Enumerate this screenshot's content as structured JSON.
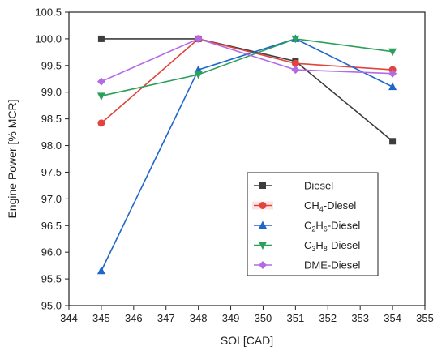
{
  "chart_data": {
    "type": "line",
    "title": "",
    "xlabel": "SOI [CAD]",
    "ylabel": "Engine Power [% MCR]",
    "xlim": [
      344,
      355
    ],
    "ylim": [
      95.0,
      100.5
    ],
    "x_ticks": [
      "344",
      "345",
      "346",
      "347",
      "348",
      "349",
      "350",
      "351",
      "352",
      "353",
      "354",
      "355"
    ],
    "y_ticks": [
      "95.0",
      "95.5",
      "96.0",
      "96.5",
      "97.0",
      "97.5",
      "98.0",
      "98.5",
      "99.0",
      "99.5",
      "100.0",
      "100.5"
    ],
    "grid": false,
    "legend_position": "bottom-right",
    "x": [
      345,
      348,
      351,
      354
    ],
    "series": [
      {
        "name": "Diesel",
        "label_parts": [
          [
            "Diesel",
            ""
          ]
        ],
        "color": "#3d3d3d",
        "marker": "square",
        "values": [
          100.0,
          100.0,
          99.58,
          98.08
        ]
      },
      {
        "name": "CH4-Diesel",
        "label_parts": [
          [
            "CH",
            ""
          ],
          [
            "4",
            "sub"
          ],
          [
            "-Diesel",
            ""
          ]
        ],
        "color": "#e0443c",
        "marker": "circle",
        "values": [
          98.42,
          100.0,
          99.54,
          99.42
        ]
      },
      {
        "name": "C2H6-Diesel",
        "label_parts": [
          [
            "C",
            ""
          ],
          [
            "2",
            "sub"
          ],
          [
            "H",
            ""
          ],
          [
            "6",
            "sub"
          ],
          [
            "-Diesel",
            ""
          ]
        ],
        "color": "#1f66cc",
        "marker": "triangle-up",
        "values": [
          95.65,
          99.42,
          100.0,
          99.1
        ]
      },
      {
        "name": "C3H8-Diesel",
        "label_parts": [
          [
            "C",
            ""
          ],
          [
            "3",
            "sub"
          ],
          [
            "H",
            ""
          ],
          [
            "8",
            "sub"
          ],
          [
            "-Diesel",
            ""
          ]
        ],
        "color": "#2aa05a",
        "marker": "triangle-down",
        "values": [
          98.93,
          99.33,
          100.0,
          99.76
        ]
      },
      {
        "name": "DME-Diesel",
        "label_parts": [
          [
            "DME-Diesel",
            ""
          ]
        ],
        "color": "#b36ae6",
        "marker": "diamond",
        "values": [
          99.2,
          100.0,
          99.42,
          99.35
        ]
      }
    ]
  }
}
